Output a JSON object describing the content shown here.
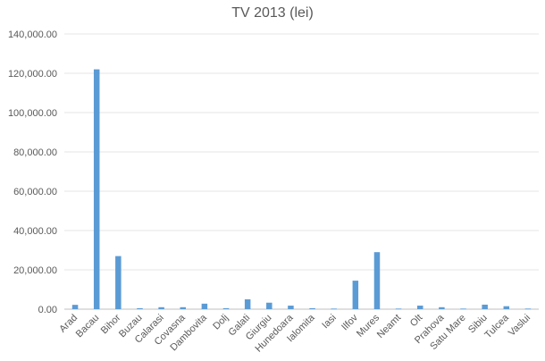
{
  "chart_data": {
    "type": "bar",
    "title": "TV 2013 (lei)",
    "xlabel": "",
    "ylabel": "",
    "ylim": [
      0,
      140000
    ],
    "yticks": [
      "0.00",
      "20,000.00",
      "40,000.00",
      "60,000.00",
      "80,000.00",
      "100,000.00",
      "120,000.00",
      "140,000.00"
    ],
    "grid": true,
    "legend": "none",
    "bar_color": "#5b9bd5",
    "grid_color": "#e6e6e6",
    "axis_color": "#bfbfbf",
    "text_color": "#595959",
    "categories": [
      "Arad",
      "Bacau",
      "Bihor",
      "Buzau",
      "Calarasi",
      "Covasna",
      "Dambovita",
      "Dolj",
      "Galati",
      "Giurgiu",
      "Hunedoara",
      "Ialomita",
      "Iasi",
      "Ilfov",
      "Mures",
      "Neamt",
      "Olt",
      "Prahova",
      "Satu Mare",
      "Sibiu",
      "Tulcea",
      "Vaslui"
    ],
    "values": [
      2200,
      122000,
      27000,
      500,
      1000,
      1000,
      2800,
      500,
      5000,
      3300,
      1800,
      500,
      300,
      14500,
      29000,
      300,
      1800,
      1000,
      300,
      2300,
      1500,
      300
    ]
  }
}
